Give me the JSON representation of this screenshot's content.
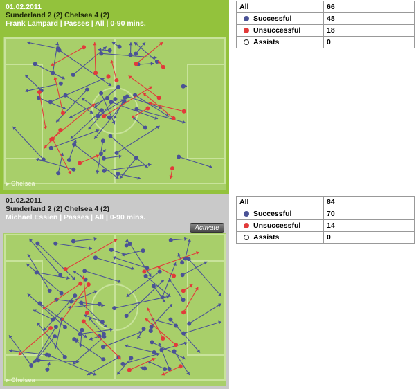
{
  "colors": {
    "successful": "#4a5296",
    "unsuccessful": "#e23a3a",
    "pitch": "#a8cf6a",
    "line": "#c8e39b"
  },
  "panels": [
    {
      "date": "01.02.2011",
      "match": "Sunderland 2 (2) Chelsea 4 (2)",
      "player": "Frank Lampard | Passes | All | 0-90 mins.",
      "team": "Chelsea",
      "stats": {
        "all_label": "All",
        "all_value": "66",
        "successful_label": "Successful",
        "successful_value": "48",
        "unsuccessful_label": "Unsuccessful",
        "unsuccessful_value": "18",
        "assists_label": "Assists",
        "assists_value": "0"
      }
    },
    {
      "date": "01.02.2011",
      "match": "Sunderland 2 (2) Chelsea 4 (2)",
      "player": "Michael Essien | Passes | All | 0-90 mins.",
      "team": "Chelsea",
      "activate_label": "Activate",
      "stats": {
        "all_label": "All",
        "all_value": "84",
        "successful_label": "Successful",
        "successful_value": "70",
        "unsuccessful_label": "Unsuccessful",
        "unsuccessful_value": "14",
        "assists_label": "Assists",
        "assists_value": "0"
      }
    }
  ]
}
